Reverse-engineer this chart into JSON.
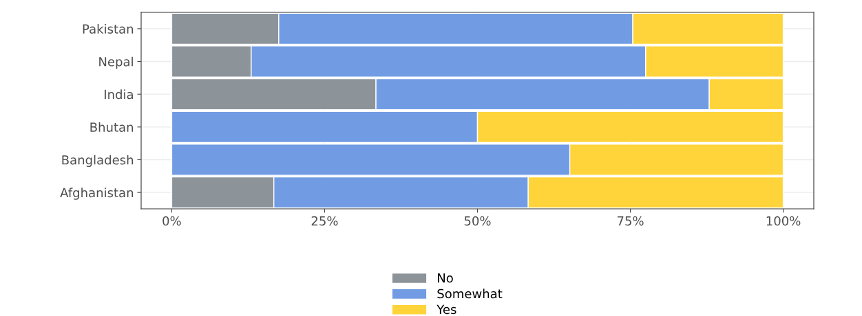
{
  "chart_data": {
    "type": "bar",
    "orientation": "horizontal",
    "stacked": true,
    "categories": [
      "Pakistan",
      "Nepal",
      "India",
      "Bhutan",
      "Bangladesh",
      "Afghanistan"
    ],
    "series": [
      {
        "name": "No",
        "color": "#8c9399",
        "values": [
          17.5,
          13.0,
          33.4,
          0,
          0,
          16.7
        ]
      },
      {
        "name": "Somewhat",
        "color": "#719ce3",
        "values": [
          57.9,
          64.5,
          54.5,
          50,
          65.1,
          41.6
        ]
      },
      {
        "name": "Yes",
        "color": "#ffd43b",
        "values": [
          24.6,
          22.5,
          12.1,
          50,
          34.9,
          41.7
        ]
      }
    ],
    "xlim": [
      -5,
      105
    ],
    "xticks": [
      {
        "value": 0,
        "label": "0%"
      },
      {
        "value": 25,
        "label": "25%"
      },
      {
        "value": 50,
        "label": "50%"
      },
      {
        "value": 75,
        "label": "75%"
      },
      {
        "value": 100,
        "label": "100%"
      }
    ],
    "grid": true,
    "legend": "bottom"
  }
}
